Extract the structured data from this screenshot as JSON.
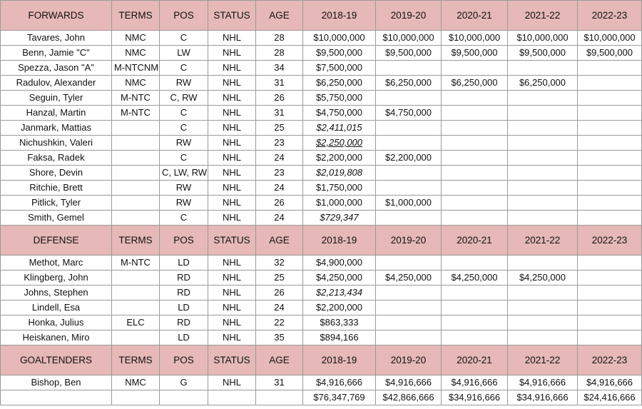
{
  "columns": [
    "TERMS",
    "POS",
    "STATUS",
    "AGE",
    "2018-19",
    "2019-20",
    "2020-21",
    "2021-22",
    "2022-23"
  ],
  "sections": [
    {
      "title": "FORWARDS",
      "players": [
        {
          "name": "Tavares, John",
          "terms": "NMC",
          "pos": "C",
          "status": "NHL",
          "age": "28",
          "s1": "$10,000,000",
          "s2": "$10,000,000",
          "s3": "$10,000,000",
          "s4": "$10,000,000",
          "s5": "$10,000,000"
        },
        {
          "name": "Benn, Jamie \"C\"",
          "terms": "NMC",
          "pos": "LW",
          "status": "NHL",
          "age": "28",
          "s1": "$9,500,000",
          "s2": "$9,500,000",
          "s3": "$9,500,000",
          "s4": "$9,500,000",
          "s5": "$9,500,000"
        },
        {
          "name": "Spezza, Jason \"A\"",
          "terms": "M-NTCNMC",
          "pos": "C",
          "status": "NHL",
          "age": "34",
          "s1": "$7,500,000",
          "s2": "",
          "s3": "",
          "s4": "",
          "s5": ""
        },
        {
          "name": "Radulov, Alexander",
          "terms": "NMC",
          "pos": "RW",
          "status": "NHL",
          "age": "31",
          "s1": "$6,250,000",
          "s2": "$6,250,000",
          "s3": "$6,250,000",
          "s4": "$6,250,000",
          "s5": ""
        },
        {
          "name": "Seguin, Tyler",
          "terms": "M-NTC",
          "pos": "C, RW",
          "status": "NHL",
          "age": "26",
          "s1": "$5,750,000",
          "s2": "",
          "s3": "",
          "s4": "",
          "s5": ""
        },
        {
          "name": "Hanzal, Martin",
          "terms": "M-NTC",
          "pos": "C",
          "status": "NHL",
          "age": "31",
          "s1": "$4,750,000",
          "s2": "$4,750,000",
          "s3": "",
          "s4": "",
          "s5": ""
        },
        {
          "name": "Janmark, Mattias",
          "terms": "",
          "pos": "C",
          "status": "NHL",
          "age": "25",
          "s1": "$2,411,015",
          "s2": "",
          "s3": "",
          "s4": "",
          "s5": "",
          "style": "it"
        },
        {
          "name": "Nichushkin, Valeri",
          "terms": "",
          "pos": "RW",
          "status": "NHL",
          "age": "23",
          "s1": "$2,250,000",
          "s2": "",
          "s3": "",
          "s4": "",
          "s5": "",
          "style": "it ul"
        },
        {
          "name": "Faksa, Radek",
          "terms": "",
          "pos": "C",
          "status": "NHL",
          "age": "24",
          "s1": "$2,200,000",
          "s2": "$2,200,000",
          "s3": "",
          "s4": "",
          "s5": ""
        },
        {
          "name": "Shore, Devin",
          "terms": "",
          "pos": "C, LW, RW",
          "status": "NHL",
          "age": "23",
          "s1": "$2,019,808",
          "s2": "",
          "s3": "",
          "s4": "",
          "s5": "",
          "style": "it"
        },
        {
          "name": "Ritchie, Brett",
          "terms": "",
          "pos": "RW",
          "status": "NHL",
          "age": "24",
          "s1": "$1,750,000",
          "s2": "",
          "s3": "",
          "s4": "",
          "s5": ""
        },
        {
          "name": "Pitlick, Tyler",
          "terms": "",
          "pos": "RW",
          "status": "NHL",
          "age": "26",
          "s1": "$1,000,000",
          "s2": "$1,000,000",
          "s3": "",
          "s4": "",
          "s5": ""
        },
        {
          "name": "Smith, Gemel",
          "terms": "",
          "pos": "C",
          "status": "NHL",
          "age": "24",
          "s1": "$729,347",
          "s2": "",
          "s3": "",
          "s4": "",
          "s5": "",
          "style": "it"
        }
      ]
    },
    {
      "title": "DEFENSE",
      "players": [
        {
          "name": "Methot, Marc",
          "terms": "M-NTC",
          "pos": "LD",
          "status": "NHL",
          "age": "32",
          "s1": "$4,900,000",
          "s2": "",
          "s3": "",
          "s4": "",
          "s5": ""
        },
        {
          "name": "Klingberg, John",
          "terms": "",
          "pos": "RD",
          "status": "NHL",
          "age": "25",
          "s1": "$4,250,000",
          "s2": "$4,250,000",
          "s3": "$4,250,000",
          "s4": "$4,250,000",
          "s5": ""
        },
        {
          "name": "Johns, Stephen",
          "terms": "",
          "pos": "RD",
          "status": "NHL",
          "age": "26",
          "s1": "$2,213,434",
          "s2": "",
          "s3": "",
          "s4": "",
          "s5": "",
          "style": "it"
        },
        {
          "name": "Lindell, Esa",
          "terms": "",
          "pos": "LD",
          "status": "NHL",
          "age": "24",
          "s1": "$2,200,000",
          "s2": "",
          "s3": "",
          "s4": "",
          "s5": ""
        },
        {
          "name": "Honka, Julius",
          "terms": "ELC",
          "pos": "RD",
          "status": "NHL",
          "age": "22",
          "s1": "$863,333",
          "s2": "",
          "s3": "",
          "s4": "",
          "s5": "",
          "style": "green"
        },
        {
          "name": "Heiskanen, Miro",
          "terms": "",
          "pos": "LD",
          "status": "NHL",
          "age": "35",
          "s1": "$894,166",
          "s2": "",
          "s3": "",
          "s4": "",
          "s5": ""
        }
      ]
    },
    {
      "title": "GOALTENDERS",
      "players": [
        {
          "name": "Bishop, Ben",
          "terms": "NMC",
          "pos": "G",
          "status": "NHL",
          "age": "31",
          "s1": "$4,916,666",
          "s2": "$4,916,666",
          "s3": "$4,916,666",
          "s4": "$4,916,666",
          "s5": "$4,916,666"
        }
      ]
    }
  ],
  "totals": {
    "s1": "$76,347,769",
    "s2": "$42,866,666",
    "s3": "$34,916,666",
    "s4": "$34,916,666",
    "s5": "$24,416,666"
  },
  "colors": {
    "header_bg": "#e6b8b7",
    "green_text": "#4ca63a",
    "grid": "#9a9a9a"
  }
}
